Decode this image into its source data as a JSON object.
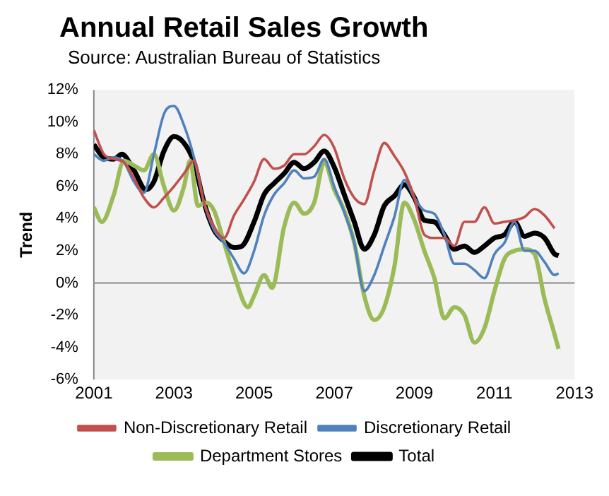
{
  "chart_data": {
    "type": "line",
    "title": "Annual Retail Sales Growth",
    "subtitle": "Source: Australian Bureau of Statistics",
    "ylabel": "Trend",
    "xlim": [
      2001,
      2013
    ],
    "xticks": [
      2001,
      2003,
      2005,
      2007,
      2009,
      2011,
      2013
    ],
    "ylim": [
      -6,
      12
    ],
    "yticks": [
      {
        "value": -6,
        "label": "-6%"
      },
      {
        "value": -4,
        "label": "-4%"
      },
      {
        "value": -2,
        "label": "-2%"
      },
      {
        "value": 0,
        "label": "0%"
      },
      {
        "value": 2,
        "label": "2%"
      },
      {
        "value": 4,
        "label": "4%"
      },
      {
        "value": 6,
        "label": "6%"
      },
      {
        "value": 8,
        "label": "8%"
      },
      {
        "value": 10,
        "label": "10%"
      },
      {
        "value": 12,
        "label": "12%"
      }
    ],
    "grid": false,
    "ref_lines": [
      {
        "axis": "y",
        "value": 0,
        "color": "#888888"
      }
    ],
    "legend": "bottom",
    "marker": "none",
    "line_style": "solid",
    "series": [
      {
        "name": "Non-Discretionary Retail",
        "color": "#c0504d",
        "x": [
          2001,
          2001.25,
          2001.5,
          2001.75,
          2002,
          2002.25,
          2002.5,
          2002.75,
          2003,
          2003.25,
          2003.5,
          2003.75,
          2004,
          2004.25,
          2004.5,
          2004.75,
          2005,
          2005.25,
          2005.5,
          2005.75,
          2006,
          2006.25,
          2006.5,
          2006.75,
          2007,
          2007.25,
          2007.5,
          2007.75,
          2008,
          2008.25,
          2008.5,
          2008.75,
          2009,
          2009.25,
          2009.5,
          2009.75,
          2010,
          2010.25,
          2010.5,
          2010.75,
          2011,
          2011.25,
          2011.5,
          2011.75,
          2012,
          2012.25,
          2012.5
        ],
        "values": [
          9.5,
          8.0,
          7.7,
          7.5,
          6.5,
          5.3,
          4.7,
          5.3,
          6.0,
          6.8,
          7.6,
          5.0,
          3.5,
          2.8,
          4.2,
          5.2,
          6.3,
          7.7,
          7.1,
          7.3,
          8.0,
          8.0,
          8.5,
          9.2,
          8.4,
          6.5,
          5.3,
          4.9,
          7.0,
          8.7,
          7.9,
          6.9,
          5.3,
          3.0,
          2.8,
          2.8,
          2.3,
          3.8,
          3.8,
          4.7,
          3.7,
          3.8,
          3.9,
          4.1,
          4.6,
          4.2,
          3.4
        ]
      },
      {
        "name": "Discretionary Retail",
        "color": "#4f81bd",
        "x": [
          2001,
          2001.25,
          2001.5,
          2001.75,
          2002,
          2002.25,
          2002.5,
          2002.75,
          2003,
          2003.25,
          2003.5,
          2003.75,
          2004,
          2004.25,
          2004.5,
          2004.75,
          2005,
          2005.25,
          2005.5,
          2005.75,
          2006,
          2006.25,
          2006.5,
          2006.75,
          2007,
          2007.25,
          2007.5,
          2007.75,
          2008,
          2008.25,
          2008.5,
          2008.75,
          2009,
          2009.25,
          2009.5,
          2009.75,
          2010,
          2010.25,
          2010.5,
          2010.75,
          2011,
          2011.25,
          2011.5,
          2011.75,
          2012,
          2012.25,
          2012.5,
          2012.6
        ],
        "values": [
          8.0,
          7.6,
          7.8,
          7.5,
          6.3,
          5.6,
          8.0,
          10.5,
          11.0,
          9.8,
          7.8,
          5.0,
          3.3,
          2.5,
          1.5,
          0.6,
          2.0,
          4.2,
          5.5,
          6.2,
          7.0,
          6.5,
          6.6,
          7.7,
          6.0,
          4.4,
          2.5,
          -0.5,
          0.5,
          2.3,
          4.1,
          6.4,
          5.3,
          4.5,
          4.3,
          3.0,
          1.2,
          1.2,
          0.8,
          0.3,
          1.8,
          2.5,
          3.8,
          2.0,
          2.0,
          1.3,
          0.5,
          0.6
        ]
      },
      {
        "name": "Department Stores",
        "color": "#9bbb59",
        "x": [
          2001,
          2001.2,
          2001.5,
          2001.75,
          2002,
          2002.25,
          2002.5,
          2002.75,
          2003,
          2003.25,
          2003.4,
          2003.6,
          2003.8,
          2004,
          2004.25,
          2004.5,
          2004.85,
          2005,
          2005.25,
          2005.45,
          2005.75,
          2006,
          2006.25,
          2006.5,
          2006.75,
          2007,
          2007.25,
          2007.5,
          2007.75,
          2008,
          2008.25,
          2008.5,
          2008.75,
          2009,
          2009.25,
          2009.5,
          2009.75,
          2010,
          2010.25,
          2010.5,
          2010.75,
          2011,
          2011.25,
          2011.5,
          2011.75,
          2012,
          2012.25,
          2012.5,
          2012.6
        ],
        "values": [
          4.7,
          3.8,
          5.5,
          7.6,
          7.3,
          7.0,
          8.0,
          6.0,
          4.5,
          6.0,
          7.6,
          4.8,
          5.0,
          4.5,
          2.5,
          0.5,
          -1.5,
          -0.8,
          0.5,
          -0.3,
          3.5,
          5.0,
          4.3,
          5.0,
          7.5,
          5.8,
          4.5,
          2.5,
          -0.8,
          -2.3,
          -1.5,
          1.0,
          5.0,
          3.9,
          2.0,
          0.3,
          -2.2,
          -1.5,
          -2.0,
          -3.7,
          -2.8,
          -0.5,
          1.5,
          2.0,
          2.1,
          1.8,
          -1.0,
          -3.2,
          -4.1
        ]
      },
      {
        "name": "Total",
        "color": "#000000",
        "x": [
          2001,
          2001.25,
          2001.5,
          2001.7,
          2002,
          2002.3,
          2002.5,
          2002.75,
          2003,
          2003.25,
          2003.5,
          2003.75,
          2004,
          2004.25,
          2004.5,
          2004.7,
          2005,
          2005.25,
          2005.5,
          2005.75,
          2006,
          2006.25,
          2006.5,
          2006.75,
          2007,
          2007.25,
          2007.5,
          2007.75,
          2008,
          2008.25,
          2008.5,
          2008.75,
          2009,
          2009.25,
          2009.5,
          2009.75,
          2010,
          2010.25,
          2010.5,
          2010.75,
          2011,
          2011.25,
          2011.5,
          2011.75,
          2012,
          2012.25,
          2012.5,
          2012.6
        ],
        "values": [
          8.6,
          7.8,
          7.7,
          8.0,
          7.0,
          5.8,
          6.3,
          8.2,
          9.1,
          8.7,
          7.5,
          5.0,
          3.3,
          2.6,
          2.2,
          2.3,
          3.8,
          5.5,
          6.2,
          6.8,
          7.5,
          7.1,
          7.5,
          8.2,
          7.2,
          5.5,
          3.8,
          2.1,
          3.0,
          4.8,
          5.4,
          6.1,
          5.3,
          3.9,
          3.8,
          3.0,
          2.1,
          2.3,
          1.9,
          2.3,
          2.8,
          3.0,
          3.8,
          2.9,
          3.1,
          2.8,
          1.8,
          1.7
        ]
      }
    ]
  }
}
